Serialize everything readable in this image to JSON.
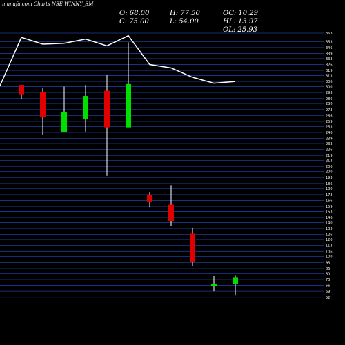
{
  "header": {
    "title": "munafa.com Charts NSE WINNY_SM"
  },
  "stats": {
    "o": "O: 68.00",
    "h": "H: 77.50",
    "oc": "OC: 10.29",
    "c": "C: 75.00",
    "l": "L: 54.00",
    "hl": "HL: 13.97",
    "ol": "OL: 25.93"
  },
  "colors": {
    "background": "#000000",
    "grid": "#1e3a9e",
    "up": "#00e000",
    "down": "#e00000",
    "wick": "#ffffff",
    "line": "#ffffff"
  },
  "chart_data": {
    "type": "candlestick",
    "ylim": [
      51,
      363
    ],
    "yticks": [
      52,
      59,
      66,
      73,
      80,
      86,
      93,
      100,
      106,
      113,
      120,
      126,
      133,
      140,
      146,
      153,
      159,
      166,
      173,
      180,
      186,
      193,
      200,
      206,
      213,
      219,
      226,
      233,
      239,
      246,
      253,
      259,
      266,
      273,
      280,
      286,
      293,
      300,
      306,
      313,
      319,
      326,
      333,
      339,
      346,
      353,
      363
    ],
    "candles": [
      {
        "open": 302,
        "close": 291,
        "high": 302,
        "low": 285,
        "dir": "down"
      },
      {
        "open": 294,
        "close": 264,
        "high": 298,
        "low": 243,
        "dir": "down"
      },
      {
        "open": 246,
        "close": 270,
        "high": 300,
        "low": 246,
        "dir": "up"
      },
      {
        "open": 262,
        "close": 289,
        "high": 302,
        "low": 247,
        "dir": "up"
      },
      {
        "open": 295,
        "close": 252,
        "high": 314,
        "low": 195,
        "dir": "down"
      },
      {
        "open": 252,
        "close": 303,
        "high": 352,
        "low": 252,
        "dir": "up"
      },
      {
        "open": 173,
        "close": 164,
        "high": 176,
        "low": 158,
        "dir": "down"
      },
      {
        "open": 161,
        "close": 142,
        "high": 184,
        "low": 136,
        "dir": "down"
      },
      {
        "open": 127,
        "close": 94,
        "high": 134,
        "low": 89,
        "dir": "down"
      },
      {
        "open": 65,
        "close": 68,
        "high": 77,
        "low": 59,
        "dir": "up"
      },
      {
        "open": 68,
        "close": 75,
        "high": 77.5,
        "low": 54,
        "dir": "up"
      }
    ],
    "line": [
      301,
      358,
      350,
      351,
      356,
      348,
      360,
      326,
      322,
      311,
      304,
      306
    ]
  }
}
